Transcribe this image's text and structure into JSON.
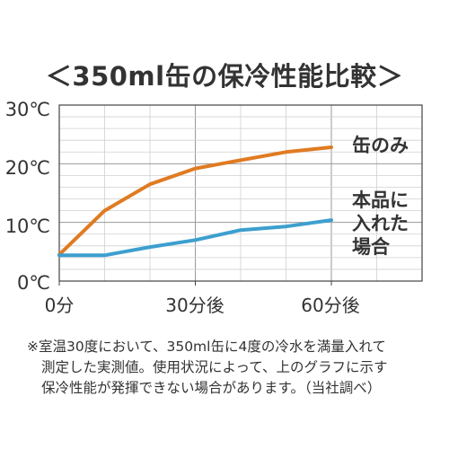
{
  "chart_data": {
    "type": "line",
    "title": "＜350ml缶の保冷性能比較＞",
    "x": [
      0,
      10,
      20,
      30,
      40,
      50,
      60
    ],
    "xlim": [
      0,
      80
    ],
    "ylim": [
      0,
      30
    ],
    "y_ticks": [
      "0℃",
      "10℃",
      "20℃",
      "30℃"
    ],
    "x_ticks": [
      "0分",
      "30分後",
      "60分後"
    ],
    "grid": true,
    "series": [
      {
        "name": "缶のみ",
        "color": "#e07b22",
        "values": [
          4.5,
          12,
          16.5,
          19.2,
          20.6,
          22,
          22.8
        ]
      },
      {
        "name": "本品に入れた場合",
        "color": "#3d9fcf",
        "values": [
          4.4,
          4.4,
          5.8,
          7,
          8.7,
          9.3,
          10.4
        ]
      }
    ]
  },
  "series_labels": {
    "can_only": "缶のみ",
    "with_product": [
      "本品に",
      "入れた",
      "場合"
    ]
  },
  "footnote": {
    "line1": "※室温30度において、350ml缶に4度の冷水を満量入れて",
    "line2": "測定した実測値。使用状況によって、上のグラフに示す",
    "line3": "保冷性能が発揮できない場合があります。（当社調べ）"
  }
}
